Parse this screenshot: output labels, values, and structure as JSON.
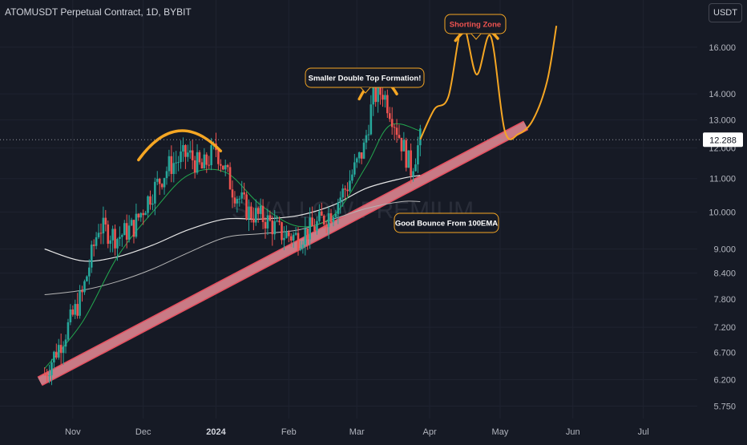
{
  "header": {
    "title": "ATOMUSDT Perpetual Contract, 1D, BYBIT",
    "currency": "USDT"
  },
  "watermark": "SWALLOW PREMIUM",
  "colors": {
    "background": "#161a25",
    "candle_up": "#26a69a",
    "candle_down": "#ef5350",
    "ema_fast": "#22a84f",
    "ema_mid": "#e6e6e6",
    "ema_slow": "#b5b5b5",
    "trendline": "#c97a85",
    "annotation": "#f5a623",
    "price_label_bg": "#ffffff"
  },
  "annotations": {
    "double_top": "Smaller Double Top Formation!",
    "shorting_zone": "Shorting Zone",
    "bounce": "Good Bounce From 100EMA"
  },
  "chart_data": {
    "type": "line",
    "scale": "log",
    "y_axis": {
      "ticks": [
        "16.000",
        "14.000",
        "13.000",
        "12.000",
        "11.000",
        "10.000",
        "9.000",
        "8.400",
        "7.800",
        "7.200",
        "6.700",
        "6.200",
        "5.750"
      ],
      "current_price": "12.288"
    },
    "x_axis": {
      "ticks": [
        "Nov",
        "Dec",
        "2024",
        "Feb",
        "Mar",
        "Apr",
        "May",
        "Jun",
        "Jul"
      ]
    },
    "price_path": {
      "dates": [
        "2023-10-20",
        "2023-10-28",
        "2023-11-05",
        "2023-11-12",
        "2023-11-20",
        "2023-11-27",
        "2023-12-04",
        "2023-12-12",
        "2023-12-20",
        "2023-12-26",
        "2024-01-01",
        "2024-01-08",
        "2024-01-15",
        "2024-01-22",
        "2024-01-29",
        "2024-02-05",
        "2024-02-12",
        "2024-02-19",
        "2024-02-26",
        "2024-03-04",
        "2024-03-08",
        "2024-03-12",
        "2024-03-16",
        "2024-03-20",
        "2024-03-24",
        "2024-03-28"
      ],
      "values": [
        6.3,
        7.0,
        7.9,
        9.6,
        9.3,
        9.6,
        10.5,
        11.4,
        11.8,
        11.3,
        12.0,
        10.7,
        10.0,
        9.8,
        9.4,
        9.3,
        9.6,
        10.0,
        10.8,
        12.0,
        13.9,
        14.1,
        13.2,
        12.2,
        11.3,
        12.3
      ]
    },
    "projection": {
      "dates": [
        "2024-03-28",
        "2024-04-03",
        "2024-04-09",
        "2024-04-15",
        "2024-04-21",
        "2024-04-27",
        "2024-05-03",
        "2024-05-09",
        "2024-05-15",
        "2024-05-21",
        "2024-05-25"
      ],
      "values": [
        12.3,
        13.4,
        13.9,
        17.0,
        14.8,
        16.5,
        12.6,
        12.5,
        13.0,
        14.5,
        17.0
      ]
    },
    "ema_fast": {
      "dates": [
        "2023-10-20",
        "2023-11-05",
        "2023-11-20",
        "2023-12-05",
        "2023-12-20",
        "2024-01-05",
        "2024-01-20",
        "2024-02-05",
        "2024-02-20",
        "2024-03-05",
        "2024-03-15",
        "2024-03-28"
      ],
      "values": [
        6.4,
        7.3,
        8.8,
        10.0,
        11.1,
        11.2,
        10.2,
        9.6,
        9.9,
        11.4,
        12.8,
        12.6
      ]
    },
    "ema_100": {
      "dates": [
        "2023-10-20",
        "2023-11-05",
        "2023-11-20",
        "2023-12-05",
        "2023-12-20",
        "2024-01-05",
        "2024-01-20",
        "2024-02-05",
        "2024-02-20",
        "2024-03-05",
        "2024-03-20",
        "2024-03-28"
      ],
      "values": [
        9.0,
        8.7,
        8.8,
        9.1,
        9.5,
        9.8,
        9.8,
        9.9,
        10.2,
        10.7,
        11.0,
        11.1
      ]
    },
    "ema_200": {
      "dates": [
        "2023-10-20",
        "2023-11-05",
        "2023-11-20",
        "2023-12-05",
        "2023-12-20",
        "2024-01-05",
        "2024-01-20",
        "2024-02-05",
        "2024-02-20",
        "2024-03-05",
        "2024-03-20",
        "2024-03-28"
      ],
      "values": [
        7.9,
        8.0,
        8.2,
        8.5,
        8.9,
        9.3,
        9.4,
        9.5,
        9.8,
        10.1,
        10.3,
        10.3
      ]
    },
    "trendline": {
      "dates": [
        "2023-10-20",
        "2024-05-12"
      ],
      "values": [
        6.2,
        12.8
      ]
    },
    "arcs": [
      {
        "dates": [
          "2023-11-29",
          "2023-12-16",
          "2024-01-03"
        ],
        "values": [
          11.6,
          12.6,
          11.9
        ]
      },
      {
        "dates": [
          "2024-03-02",
          "2024-03-10",
          "2024-03-18"
        ],
        "values": [
          13.8,
          14.6,
          14.0
        ]
      },
      {
        "dates": [
          "2024-04-12",
          "2024-04-21",
          "2024-04-30"
        ],
        "values": [
          16.3,
          17.0,
          16.4
        ]
      }
    ]
  }
}
